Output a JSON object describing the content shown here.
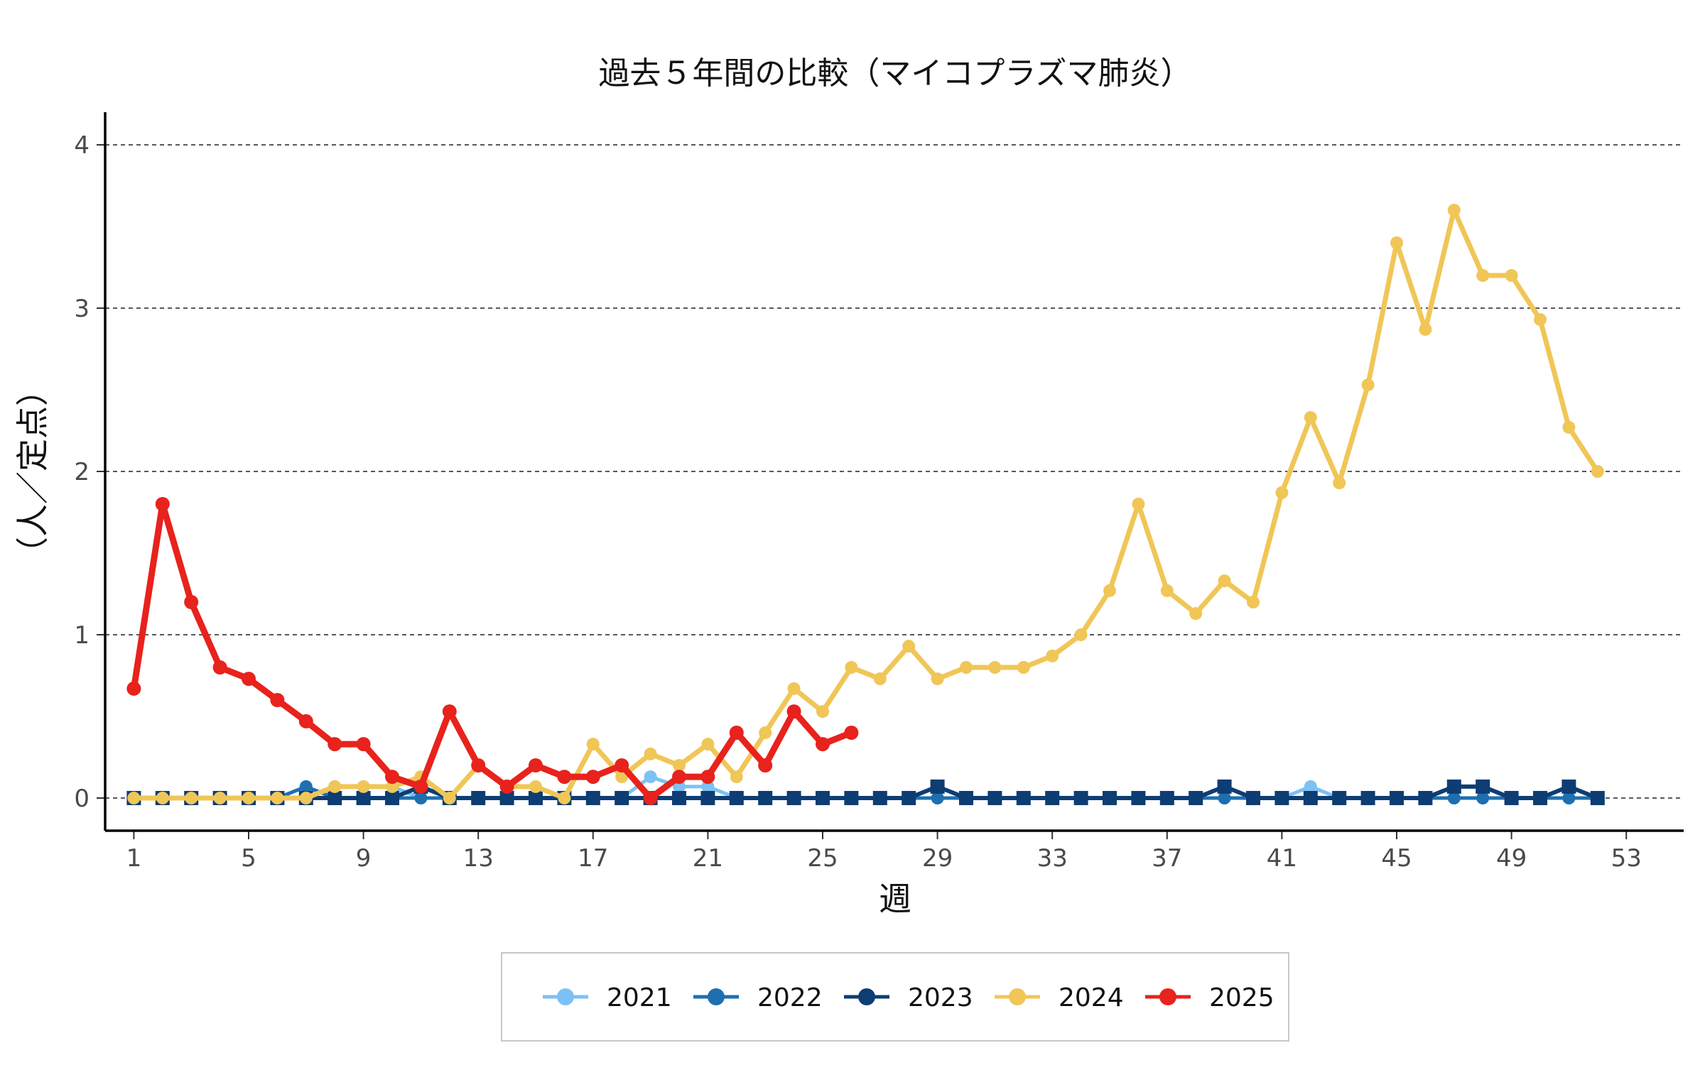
{
  "chart_data": {
    "type": "line",
    "title": "過去５年間の比較（マイコプラズマ肺炎）",
    "xlabel": "週",
    "ylabel": "（人／定点）",
    "xlim": [
      0,
      55
    ],
    "ylim": [
      -0.2,
      4.2
    ],
    "x_ticks": [
      1,
      5,
      9,
      13,
      17,
      21,
      25,
      29,
      33,
      37,
      41,
      45,
      49,
      53
    ],
    "y_ticks": [
      0,
      1,
      2,
      3,
      4
    ],
    "grid": "horizontal-dashed",
    "legend_position": "bottom",
    "series": [
      {
        "name": "2021",
        "color": "#7cc1f5",
        "x": [
          1,
          2,
          3,
          4,
          5,
          6,
          7,
          8,
          9,
          10,
          11,
          12,
          13,
          14,
          15,
          16,
          17,
          18,
          19,
          20,
          21,
          22,
          23,
          24,
          25,
          26,
          27,
          28,
          29,
          30,
          31,
          32,
          33,
          34,
          35,
          36,
          37,
          38,
          39,
          40,
          41,
          42,
          43,
          44,
          45,
          46,
          47,
          48,
          49,
          50,
          51,
          52
        ],
        "values": [
          0,
          0,
          0,
          0,
          0,
          0,
          0,
          0.07,
          0.07,
          0.07,
          0,
          0,
          0,
          0,
          0,
          0,
          0,
          0,
          0.13,
          0.07,
          0.07,
          0,
          0,
          0,
          0,
          0,
          0,
          0,
          0,
          0,
          0,
          0,
          0,
          0,
          0,
          0,
          0,
          0,
          0,
          0,
          0,
          0.07,
          0,
          0,
          0,
          0,
          0,
          0,
          0,
          0,
          0,
          0
        ]
      },
      {
        "name": "2022",
        "color": "#1f6fb0",
        "x": [
          1,
          2,
          3,
          4,
          5,
          6,
          7,
          8,
          9,
          10,
          11,
          12,
          13,
          14,
          15,
          16,
          17,
          18,
          19,
          20,
          21,
          22,
          23,
          24,
          25,
          26,
          27,
          28,
          29,
          30,
          31,
          32,
          33,
          34,
          35,
          36,
          37,
          38,
          39,
          40,
          41,
          42,
          43,
          44,
          45,
          46,
          47,
          48,
          49,
          50,
          51,
          52
        ],
        "values": [
          0,
          0,
          0,
          0,
          0,
          0,
          0.07,
          0,
          0,
          0,
          0,
          0,
          0,
          0,
          0,
          0,
          0,
          0,
          0,
          0,
          0,
          0,
          0,
          0,
          0,
          0,
          0,
          0,
          0,
          0,
          0,
          0,
          0,
          0,
          0,
          0,
          0,
          0,
          0,
          0,
          0,
          0,
          0,
          0,
          0,
          0,
          0,
          0,
          0,
          0,
          0,
          0
        ]
      },
      {
        "name": "2023",
        "color": "#0d3d73",
        "x": [
          1,
          2,
          3,
          4,
          5,
          6,
          7,
          8,
          9,
          10,
          11,
          12,
          13,
          14,
          15,
          16,
          17,
          18,
          19,
          20,
          21,
          22,
          23,
          24,
          25,
          26,
          27,
          28,
          29,
          30,
          31,
          32,
          33,
          34,
          35,
          36,
          37,
          38,
          39,
          40,
          41,
          42,
          43,
          44,
          45,
          46,
          47,
          48,
          49,
          50,
          51,
          52
        ],
        "values": [
          0,
          0,
          0,
          0,
          0,
          0,
          0,
          0,
          0,
          0,
          0.07,
          0,
          0,
          0,
          0,
          0,
          0,
          0,
          0,
          0,
          0,
          0,
          0,
          0,
          0,
          0,
          0,
          0,
          0.07,
          0,
          0,
          0,
          0,
          0,
          0,
          0,
          0,
          0,
          0.07,
          0,
          0,
          0,
          0,
          0,
          0,
          0,
          0.07,
          0.07,
          0,
          0,
          0.07,
          0
        ]
      },
      {
        "name": "2024",
        "color": "#f0c657",
        "x": [
          1,
          2,
          3,
          4,
          5,
          6,
          7,
          8,
          9,
          10,
          11,
          12,
          13,
          14,
          15,
          16,
          17,
          18,
          19,
          20,
          21,
          22,
          23,
          24,
          25,
          26,
          27,
          28,
          29,
          30,
          31,
          32,
          33,
          34,
          35,
          36,
          37,
          38,
          39,
          40,
          41,
          42,
          43,
          44,
          45,
          46,
          47,
          48,
          49,
          50,
          51,
          52
        ],
        "values": [
          0,
          0,
          0,
          0,
          0,
          0,
          0,
          0.07,
          0.07,
          0.07,
          0.13,
          0,
          0.2,
          0.07,
          0.07,
          0,
          0.33,
          0.13,
          0.27,
          0.2,
          0.33,
          0.13,
          0.4,
          0.67,
          0.53,
          0.8,
          0.73,
          0.93,
          0.73,
          0.8,
          0.8,
          0.8,
          0.87,
          1,
          1.27,
          1.8,
          1.27,
          1.13,
          1.33,
          1.2,
          1.87,
          2.33,
          1.93,
          2.53,
          3.4,
          2.87,
          3.6,
          3.2,
          3.2,
          2.93,
          2.27,
          2
        ]
      },
      {
        "name": "2025",
        "color": "#e8221c",
        "x": [
          1,
          2,
          3,
          4,
          5,
          6,
          7,
          8,
          9,
          10,
          11,
          12,
          13,
          14,
          15,
          16,
          17,
          18,
          19,
          20,
          21,
          22,
          23,
          24,
          25,
          26
        ],
        "values": [
          0.67,
          1.8,
          1.2,
          0.8,
          0.73,
          0.6,
          0.47,
          0.33,
          0.33,
          0.13,
          0.07,
          0.53,
          0.2,
          0.07,
          0.2,
          0.13,
          0.13,
          0.2,
          0,
          0.13,
          0.13,
          0.4,
          0.2,
          0.53,
          0.33,
          0.4
        ]
      }
    ]
  }
}
